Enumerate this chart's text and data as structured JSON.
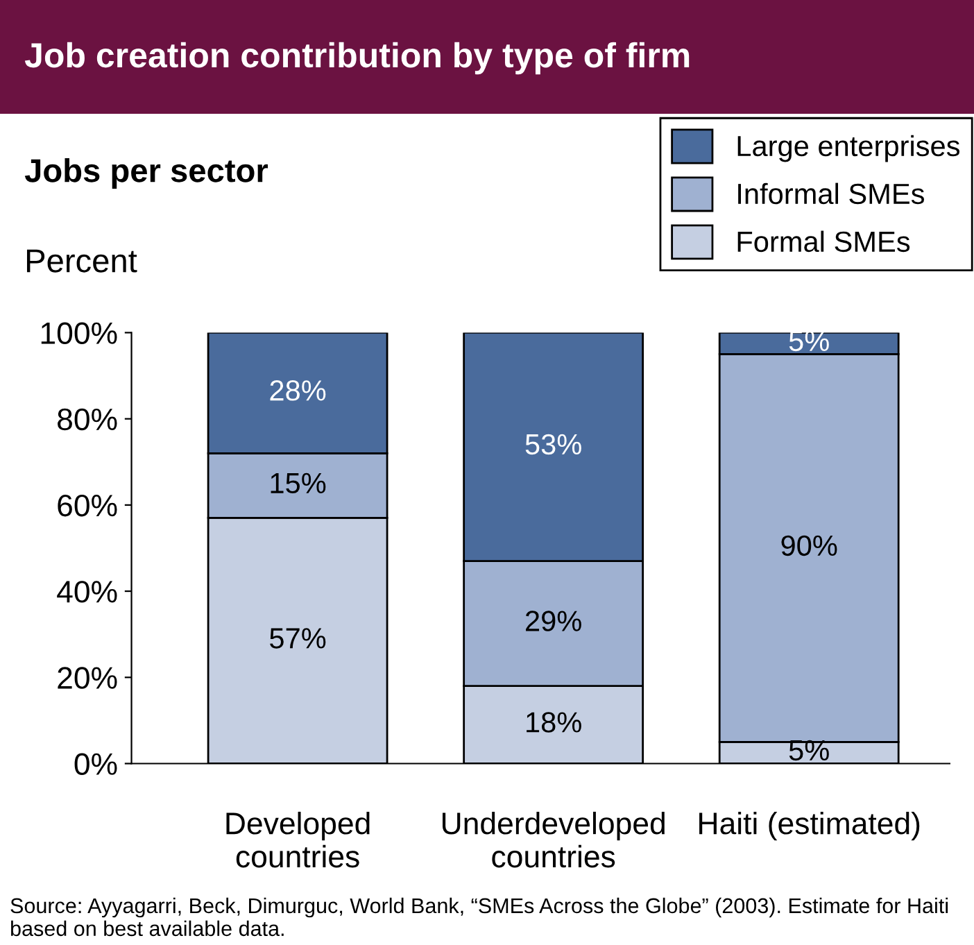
{
  "chart_data": {
    "type": "bar",
    "title": "Job creation contribution by type of firm",
    "subtitle": "Jobs per sector",
    "ylabel": "Percent",
    "categories": [
      "Developed\ncountries",
      "Underdeveloped\ncountries",
      "Haiti (estimated)"
    ],
    "stacked": true,
    "legend": "top right",
    "grid": false,
    "series": [
      {
        "name": "Formal SMEs",
        "color": "#c5cfe2",
        "values": [
          57,
          18,
          5
        ],
        "value_labels": [
          "57%",
          "18%",
          "5%"
        ]
      },
      {
        "name": "Informal SMEs",
        "color": "#9fb1d1",
        "values": [
          15,
          29,
          90
        ],
        "value_labels": [
          "15%",
          "29%",
          "90%"
        ]
      },
      {
        "name": "Large enterprises",
        "color": "#4a6b9c",
        "values": [
          28,
          53,
          5
        ],
        "value_labels": [
          "28%",
          "53%",
          "5%"
        ]
      }
    ],
    "ylim": [
      0,
      100
    ],
    "yticks": [
      {
        "value": 0,
        "label": "0%"
      },
      {
        "value": 20,
        "label": "20%"
      },
      {
        "value": 40,
        "label": "40%"
      },
      {
        "value": 60,
        "label": "60%"
      },
      {
        "value": 80,
        "label": "80%"
      },
      {
        "value": 100,
        "label": "100%"
      }
    ],
    "annotations": [
      "Source: Ayyagarri, Beck, Dimurguc, World Bank, “SMEs Across the Globe” (2003). Estimate for Haiti based on best available data."
    ]
  }
}
